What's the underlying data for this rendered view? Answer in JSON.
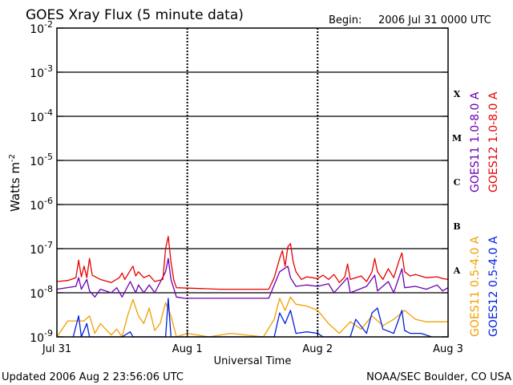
{
  "page": {
    "title": "GOES Xray Flux (5 minute data)",
    "begin_label": "Begin:",
    "begin_value": "2006 Jul 31 0000 UTC",
    "updated": "Updated 2006 Aug  2 23:56:06 UTC",
    "credit": "NOAA/SEC Boulder, CO USA"
  },
  "chart_data": {
    "type": "line",
    "title": "GOES Xray Flux (5 minute data)",
    "xlabel": "Universal Time",
    "ylabel_base": "Watts m",
    "ylabel_exp": "-2",
    "y_scale": "log",
    "ylim": [
      1e-09,
      0.01
    ],
    "xlim": [
      "2006-07-31T00:00Z",
      "2006-08-03T00:00Z"
    ],
    "y_ticks": [
      {
        "value": 0.01,
        "base": "10",
        "exp": "-2"
      },
      {
        "value": 0.001,
        "base": "10",
        "exp": "-3"
      },
      {
        "value": 0.0001,
        "base": "10",
        "exp": "-4"
      },
      {
        "value": 1e-05,
        "base": "10",
        "exp": "-5"
      },
      {
        "value": 1e-06,
        "base": "10",
        "exp": "-6"
      },
      {
        "value": 1e-07,
        "base": "10",
        "exp": "-7"
      },
      {
        "value": 1e-08,
        "base": "10",
        "exp": "-8"
      },
      {
        "value": 1e-09,
        "base": "10",
        "exp": "-9"
      }
    ],
    "x_ticks": [
      {
        "time": "2006-07-31T00:00Z",
        "label": "Jul 31"
      },
      {
        "time": "2006-08-01T00:00Z",
        "label": "Aug 1"
      },
      {
        "time": "2006-08-02T00:00Z",
        "label": "Aug 2"
      },
      {
        "time": "2006-08-03T00:00Z",
        "label": "Aug 3"
      }
    ],
    "flare_classes": [
      {
        "label": "X",
        "value": 0.00032
      },
      {
        "label": "M",
        "value": 3.2e-05
      },
      {
        "label": "C",
        "value": 3.2e-06
      },
      {
        "label": "B",
        "value": 3.2e-07
      },
      {
        "label": "A",
        "value": 3.2e-08
      }
    ],
    "grid_lines_y": [
      0.001,
      0.0001,
      1e-05,
      1e-06,
      1e-07,
      1e-08
    ],
    "legend_placement": "right",
    "series": [
      {
        "name": "GOES12 1.0-8.0 A",
        "color": "#e80000",
        "points": [
          [
            "2006-07-31T00:00Z",
            1.8e-08
          ],
          [
            "2006-07-31T02:00Z",
            1.9e-08
          ],
          [
            "2006-07-31T03:30Z",
            2.2e-08
          ],
          [
            "2006-07-31T04:00Z",
            5.5e-08
          ],
          [
            "2006-07-31T04:30Z",
            2.3e-08
          ],
          [
            "2006-07-31T05:00Z",
            4e-08
          ],
          [
            "2006-07-31T05:30Z",
            2.2e-08
          ],
          [
            "2006-07-31T06:00Z",
            6e-08
          ],
          [
            "2006-07-31T06:30Z",
            2.5e-08
          ],
          [
            "2006-07-31T08:00Z",
            2e-08
          ],
          [
            "2006-07-31T10:00Z",
            1.7e-08
          ],
          [
            "2006-07-31T11:30Z",
            2.2e-08
          ],
          [
            "2006-07-31T12:00Z",
            2.8e-08
          ],
          [
            "2006-07-31T12:30Z",
            2e-08
          ],
          [
            "2006-07-31T13:30Z",
            3.2e-08
          ],
          [
            "2006-07-31T14:00Z",
            4e-08
          ],
          [
            "2006-07-31T14:30Z",
            2.4e-08
          ],
          [
            "2006-07-31T15:00Z",
            3e-08
          ],
          [
            "2006-07-31T16:00Z",
            2.2e-08
          ],
          [
            "2006-07-31T17:00Z",
            2.5e-08
          ],
          [
            "2006-07-31T18:00Z",
            1.8e-08
          ],
          [
            "2006-07-31T19:30Z",
            2e-08
          ],
          [
            "2006-07-31T20:00Z",
            1e-07
          ],
          [
            "2006-07-31T20:30Z",
            1.9e-07
          ],
          [
            "2006-07-31T21:00Z",
            5e-08
          ],
          [
            "2006-07-31T21:30Z",
            2e-08
          ],
          [
            "2006-07-31T22:00Z",
            1.3e-08
          ],
          [
            "2006-08-01T06:00Z",
            1.2e-08
          ],
          [
            "2006-08-01T12:00Z",
            1.2e-08
          ],
          [
            "2006-08-01T15:00Z",
            1.2e-08
          ],
          [
            "2006-08-01T16:00Z",
            2.2e-08
          ],
          [
            "2006-08-01T17:00Z",
            6e-08
          ],
          [
            "2006-08-01T17:30Z",
            9e-08
          ],
          [
            "2006-08-01T18:00Z",
            4e-08
          ],
          [
            "2006-08-01T18:30Z",
            1.1e-07
          ],
          [
            "2006-08-01T19:00Z",
            1.3e-07
          ],
          [
            "2006-08-01T19:30Z",
            5e-08
          ],
          [
            "2006-08-01T20:00Z",
            3e-08
          ],
          [
            "2006-08-01T21:00Z",
            2e-08
          ],
          [
            "2006-08-01T22:00Z",
            2.3e-08
          ],
          [
            "2006-08-02T00:00Z",
            2.1e-08
          ],
          [
            "2006-08-02T01:00Z",
            2.5e-08
          ],
          [
            "2006-08-02T02:00Z",
            2e-08
          ],
          [
            "2006-08-02T03:00Z",
            2.6e-08
          ],
          [
            "2006-08-02T04:00Z",
            1.7e-08
          ],
          [
            "2006-08-02T05:00Z",
            2.3e-08
          ],
          [
            "2006-08-02T05:30Z",
            4.5e-08
          ],
          [
            "2006-08-02T06:00Z",
            2e-08
          ],
          [
            "2006-08-02T08:00Z",
            2.4e-08
          ],
          [
            "2006-08-02T09:00Z",
            1.8e-08
          ],
          [
            "2006-08-02T10:00Z",
            3e-08
          ],
          [
            "2006-08-02T10:30Z",
            6e-08
          ],
          [
            "2006-08-02T11:00Z",
            3e-08
          ],
          [
            "2006-08-02T12:00Z",
            2e-08
          ],
          [
            "2006-08-02T13:00Z",
            3.5e-08
          ],
          [
            "2006-08-02T14:00Z",
            2.2e-08
          ],
          [
            "2006-08-02T15:00Z",
            5.5e-08
          ],
          [
            "2006-08-02T15:30Z",
            8e-08
          ],
          [
            "2006-08-02T16:00Z",
            3e-08
          ],
          [
            "2006-08-02T17:00Z",
            2.4e-08
          ],
          [
            "2006-08-02T18:00Z",
            2.6e-08
          ],
          [
            "2006-08-02T20:00Z",
            2.2e-08
          ],
          [
            "2006-08-02T22:00Z",
            2.3e-08
          ],
          [
            "2006-08-02T23:00Z",
            2.1e-08
          ],
          [
            "2006-08-03T00:00Z",
            2e-08
          ]
        ]
      },
      {
        "name": "GOES11 1.0-8.0 A",
        "color": "#6a00b0",
        "points": [
          [
            "2006-07-31T00:00Z",
            1.2e-08
          ],
          [
            "2006-07-31T03:30Z",
            1.4e-08
          ],
          [
            "2006-07-31T04:00Z",
            2.2e-08
          ],
          [
            "2006-07-31T04:30Z",
            1.2e-08
          ],
          [
            "2006-07-31T05:30Z",
            2e-08
          ],
          [
            "2006-07-31T06:00Z",
            1.1e-08
          ],
          [
            "2006-07-31T07:00Z",
            8e-09
          ],
          [
            "2006-07-31T08:00Z",
            1.2e-08
          ],
          [
            "2006-07-31T10:00Z",
            1e-08
          ],
          [
            "2006-07-31T11:00Z",
            1.3e-08
          ],
          [
            "2006-07-31T12:00Z",
            8e-09
          ],
          [
            "2006-07-31T13:30Z",
            1.8e-08
          ],
          [
            "2006-07-31T14:30Z",
            1e-08
          ],
          [
            "2006-07-31T15:00Z",
            1.5e-08
          ],
          [
            "2006-07-31T16:00Z",
            1e-08
          ],
          [
            "2006-07-31T17:00Z",
            1.5e-08
          ],
          [
            "2006-07-31T18:00Z",
            1e-08
          ],
          [
            "2006-07-31T20:00Z",
            3e-08
          ],
          [
            "2006-07-31T20:30Z",
            6e-08
          ],
          [
            "2006-07-31T21:00Z",
            2e-08
          ],
          [
            "2006-07-31T22:00Z",
            8e-09
          ],
          [
            "2006-07-31T23:30Z",
            7.5e-09
          ],
          [
            "2006-08-01T12:00Z",
            7.5e-09
          ],
          [
            "2006-08-01T15:00Z",
            7.5e-09
          ],
          [
            "2006-08-01T16:00Z",
            1.5e-08
          ],
          [
            "2006-08-01T17:00Z",
            3e-08
          ],
          [
            "2006-08-01T18:30Z",
            4e-08
          ],
          [
            "2006-08-01T19:00Z",
            2.2e-08
          ],
          [
            "2006-08-01T20:00Z",
            1.4e-08
          ],
          [
            "2006-08-01T22:00Z",
            1.5e-08
          ],
          [
            "2006-08-02T00:00Z",
            1.4e-08
          ],
          [
            "2006-08-02T02:00Z",
            1.6e-08
          ],
          [
            "2006-08-02T03:00Z",
            1e-08
          ],
          [
            "2006-08-02T05:30Z",
            2.2e-08
          ],
          [
            "2006-08-02T06:00Z",
            1e-08
          ],
          [
            "2006-08-02T09:00Z",
            1.4e-08
          ],
          [
            "2006-08-02T10:30Z",
            2.5e-08
          ],
          [
            "2006-08-02T11:00Z",
            1.1e-08
          ],
          [
            "2006-08-02T13:00Z",
            1.8e-08
          ],
          [
            "2006-08-02T14:00Z",
            1e-08
          ],
          [
            "2006-08-02T15:30Z",
            3.5e-08
          ],
          [
            "2006-08-02T16:00Z",
            1.3e-08
          ],
          [
            "2006-08-02T18:00Z",
            1.4e-08
          ],
          [
            "2006-08-02T20:00Z",
            1.2e-08
          ],
          [
            "2006-08-02T22:00Z",
            1.5e-08
          ],
          [
            "2006-08-02T23:00Z",
            1.1e-08
          ],
          [
            "2006-08-03T00:00Z",
            1.3e-08
          ]
        ]
      },
      {
        "name": "GOES11 0.5-4.0 A",
        "color": "#f0a000",
        "points": [
          [
            "2006-07-31T00:00Z",
            1e-09
          ],
          [
            "2006-07-31T02:00Z",
            2.3e-09
          ],
          [
            "2006-07-31T05:00Z",
            2.3e-09
          ],
          [
            "2006-07-31T06:00Z",
            3e-09
          ],
          [
            "2006-07-31T07:00Z",
            1.2e-09
          ],
          [
            "2006-07-31T08:00Z",
            2e-09
          ],
          [
            "2006-07-31T10:00Z",
            1.1e-09
          ],
          [
            "2006-07-31T11:00Z",
            1.5e-09
          ],
          [
            "2006-07-31T12:00Z",
            1e-09
          ],
          [
            "2006-07-31T13:00Z",
            3e-09
          ],
          [
            "2006-07-31T14:00Z",
            7e-09
          ],
          [
            "2006-07-31T15:00Z",
            3e-09
          ],
          [
            "2006-07-31T16:00Z",
            2e-09
          ],
          [
            "2006-07-31T17:00Z",
            4.5e-09
          ],
          [
            "2006-07-31T18:00Z",
            1.4e-09
          ],
          [
            "2006-07-31T19:00Z",
            2e-09
          ],
          [
            "2006-07-31T20:00Z",
            6e-09
          ],
          [
            "2006-07-31T21:00Z",
            3e-09
          ],
          [
            "2006-07-31T22:00Z",
            1e-09
          ],
          [
            "2006-08-01T00:00Z",
            1.2e-09
          ],
          [
            "2006-08-01T04:00Z",
            1e-09
          ],
          [
            "2006-08-01T08:00Z",
            1.2e-09
          ],
          [
            "2006-08-01T14:00Z",
            1e-09
          ],
          [
            "2006-08-01T16:00Z",
            2.5e-09
          ],
          [
            "2006-08-01T17:00Z",
            7.5e-09
          ],
          [
            "2006-08-01T18:00Z",
            4e-09
          ],
          [
            "2006-08-01T19:00Z",
            8e-09
          ],
          [
            "2006-08-01T20:00Z",
            5.5e-09
          ],
          [
            "2006-08-01T22:00Z",
            5e-09
          ],
          [
            "2006-08-02T00:00Z",
            4e-09
          ],
          [
            "2006-08-02T02:00Z",
            2e-09
          ],
          [
            "2006-08-02T04:00Z",
            1.2e-09
          ],
          [
            "2006-08-02T06:00Z",
            2.2e-09
          ],
          [
            "2006-08-02T08:00Z",
            1.5e-09
          ],
          [
            "2006-08-02T10:00Z",
            3e-09
          ],
          [
            "2006-08-02T12:00Z",
            1.8e-09
          ],
          [
            "2006-08-02T14:00Z",
            2.5e-09
          ],
          [
            "2006-08-02T16:00Z",
            4e-09
          ],
          [
            "2006-08-02T18:00Z",
            2.5e-09
          ],
          [
            "2006-08-02T20:00Z",
            2.2e-09
          ],
          [
            "2006-08-03T00:00Z",
            2.2e-09
          ]
        ]
      },
      {
        "name": "GOES12 0.5-4.0 A",
        "color": "#0020e0",
        "points": [
          [
            "2006-07-31T03:00Z",
            1e-09
          ],
          [
            "2006-07-31T04:00Z",
            3e-09
          ],
          [
            "2006-07-31T04:30Z",
            1e-09
          ],
          [
            "2006-07-31T05:30Z",
            2e-09
          ],
          [
            "2006-07-31T06:00Z",
            1e-09
          ],
          [
            "2006-07-31T12:00Z",
            1e-09
          ],
          [
            "2006-07-31T13:30Z",
            1.3e-09
          ],
          [
            "2006-07-31T14:00Z",
            1e-09
          ],
          [
            "2006-07-31T20:00Z",
            1e-09
          ],
          [
            "2006-07-31T20:30Z",
            7.5e-09
          ],
          [
            "2006-07-31T21:00Z",
            1e-09
          ],
          [
            "2006-08-01T16:00Z",
            1e-09
          ],
          [
            "2006-08-01T17:00Z",
            3.5e-09
          ],
          [
            "2006-08-01T18:00Z",
            2e-09
          ],
          [
            "2006-08-01T19:00Z",
            4e-09
          ],
          [
            "2006-08-01T20:00Z",
            1.2e-09
          ],
          [
            "2006-08-01T22:00Z",
            1.3e-09
          ],
          [
            "2006-08-02T00:00Z",
            1.2e-09
          ],
          [
            "2006-08-02T01:00Z",
            1e-09
          ],
          [
            "2006-08-02T06:00Z",
            1e-09
          ],
          [
            "2006-08-02T07:00Z",
            2.5e-09
          ],
          [
            "2006-08-02T09:00Z",
            1.2e-09
          ],
          [
            "2006-08-02T10:00Z",
            3.5e-09
          ],
          [
            "2006-08-02T11:00Z",
            4.5e-09
          ],
          [
            "2006-08-02T12:00Z",
            1.5e-09
          ],
          [
            "2006-08-02T14:00Z",
            1.2e-09
          ],
          [
            "2006-08-02T15:30Z",
            4e-09
          ],
          [
            "2006-08-02T16:00Z",
            1.4e-09
          ],
          [
            "2006-08-02T17:00Z",
            1.2e-09
          ],
          [
            "2006-08-02T19:00Z",
            1.2e-09
          ],
          [
            "2006-08-02T21:00Z",
            1e-09
          ]
        ]
      }
    ]
  }
}
